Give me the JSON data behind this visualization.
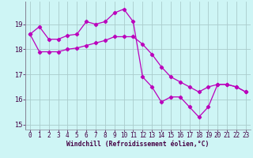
{
  "xlabel": "Windchill (Refroidissement éolien,°C)",
  "bg_color": "#cef5f5",
  "line_color": "#bb00bb",
  "grid_color": "#aacccc",
  "xlim": [
    -0.5,
    23.5
  ],
  "ylim": [
    14.8,
    19.9
  ],
  "xticks": [
    0,
    1,
    2,
    3,
    4,
    5,
    6,
    7,
    8,
    9,
    10,
    11,
    12,
    13,
    14,
    15,
    16,
    17,
    18,
    19,
    20,
    21,
    22,
    23
  ],
  "yticks": [
    15,
    16,
    17,
    18,
    19
  ],
  "series1_x": [
    0,
    1,
    2,
    3,
    4,
    5,
    6,
    7,
    8,
    9,
    10,
    11,
    12,
    13,
    14,
    15,
    16,
    17,
    18,
    19,
    20,
    21,
    22,
    23
  ],
  "series1_y": [
    18.6,
    18.9,
    18.4,
    18.4,
    18.55,
    18.6,
    19.1,
    19.0,
    19.1,
    19.45,
    19.6,
    19.1,
    16.9,
    16.5,
    15.9,
    16.1,
    16.1,
    15.7,
    15.3,
    15.7,
    16.6,
    16.6,
    16.5,
    16.3
  ],
  "series2_x": [
    0,
    1,
    2,
    3,
    4,
    5,
    6,
    7,
    8,
    9,
    10,
    11,
    12,
    13,
    14,
    15,
    16,
    17,
    18,
    19,
    20,
    21,
    22,
    23
  ],
  "series2_y": [
    18.6,
    17.9,
    17.9,
    17.9,
    18.0,
    18.05,
    18.15,
    18.25,
    18.35,
    18.5,
    18.5,
    18.5,
    18.2,
    17.8,
    17.3,
    16.9,
    16.7,
    16.5,
    16.3,
    16.5,
    16.6,
    16.6,
    16.5,
    16.3
  ]
}
